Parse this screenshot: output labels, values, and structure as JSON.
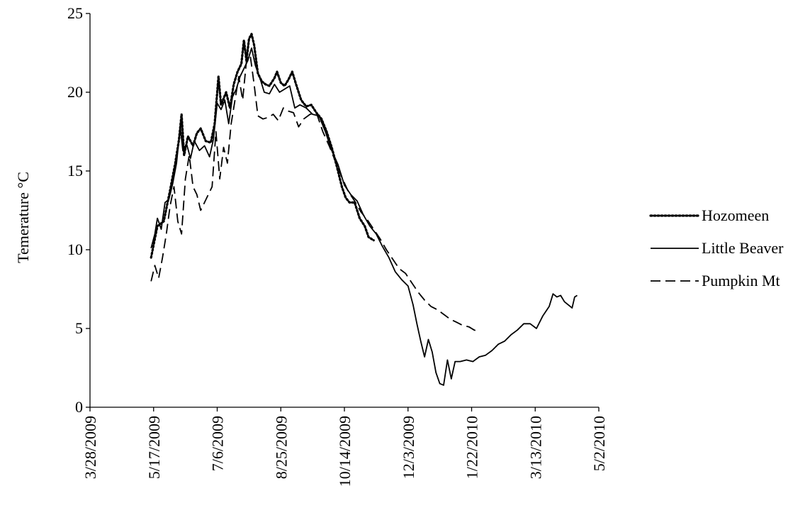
{
  "chart_data": {
    "type": "line",
    "title": "",
    "xlabel": "",
    "ylabel": "Temerature °C",
    "xlim": [
      "2009-03-28",
      "2010-05-02"
    ],
    "ylim": [
      0,
      25
    ],
    "x_ticks": [
      "3/28/2009",
      "5/17/2009",
      "7/6/2009",
      "8/25/2009",
      "10/14/2009",
      "12/3/2009",
      "1/22/2010",
      "3/13/2010",
      "5/2/2010"
    ],
    "y_ticks": [
      "0",
      "5",
      "10",
      "15",
      "20",
      "25"
    ],
    "grid": false,
    "legend_position": "right",
    "series": [
      {
        "name": "Hozomeen",
        "style": "dotted",
        "color": "#000000",
        "points": [
          [
            "2009-05-15",
            9.5
          ],
          [
            "2009-05-20",
            11.5
          ],
          [
            "2009-05-25",
            11.8
          ],
          [
            "2009-05-30",
            13.8
          ],
          [
            "2009-06-03",
            15.5
          ],
          [
            "2009-06-06",
            17.0
          ],
          [
            "2009-06-08",
            18.6
          ],
          [
            "2009-06-10",
            16.0
          ],
          [
            "2009-06-13",
            17.2
          ],
          [
            "2009-06-17",
            16.6
          ],
          [
            "2009-06-20",
            17.4
          ],
          [
            "2009-06-23",
            17.7
          ],
          [
            "2009-06-27",
            16.9
          ],
          [
            "2009-07-01",
            16.8
          ],
          [
            "2009-07-04",
            18.0
          ],
          [
            "2009-07-06",
            20.0
          ],
          [
            "2009-07-07",
            21.0
          ],
          [
            "2009-07-09",
            19.2
          ],
          [
            "2009-07-13",
            20.0
          ],
          [
            "2009-07-16",
            19.0
          ],
          [
            "2009-07-19",
            20.5
          ],
          [
            "2009-07-22",
            21.3
          ],
          [
            "2009-07-25",
            21.8
          ],
          [
            "2009-07-27",
            23.3
          ],
          [
            "2009-07-29",
            22.0
          ],
          [
            "2009-07-31",
            23.4
          ],
          [
            "2009-08-02",
            23.7
          ],
          [
            "2009-08-04",
            23.0
          ],
          [
            "2009-08-07",
            21.2
          ],
          [
            "2009-08-10",
            20.7
          ],
          [
            "2009-08-13",
            20.5
          ],
          [
            "2009-08-16",
            20.4
          ],
          [
            "2009-08-20",
            20.9
          ],
          [
            "2009-08-22",
            21.3
          ],
          [
            "2009-08-25",
            20.6
          ],
          [
            "2009-08-28",
            20.4
          ],
          [
            "2009-08-31",
            20.8
          ],
          [
            "2009-09-03",
            21.3
          ],
          [
            "2009-09-06",
            20.5
          ],
          [
            "2009-09-10",
            19.5
          ],
          [
            "2009-09-14",
            19.1
          ],
          [
            "2009-09-18",
            19.2
          ],
          [
            "2009-09-22",
            18.7
          ],
          [
            "2009-09-26",
            18.3
          ],
          [
            "2009-09-30",
            17.5
          ],
          [
            "2009-10-04",
            16.5
          ],
          [
            "2009-10-08",
            15.3
          ],
          [
            "2009-10-12",
            14.0
          ],
          [
            "2009-10-15",
            13.3
          ],
          [
            "2009-10-18",
            13.0
          ],
          [
            "2009-10-22",
            13.0
          ],
          [
            "2009-10-26",
            12.0
          ],
          [
            "2009-10-30",
            11.5
          ],
          [
            "2009-11-02",
            10.8
          ],
          [
            "2009-11-06",
            10.6
          ]
        ]
      },
      {
        "name": "Little Beaver",
        "style": "solid",
        "color": "#000000",
        "points": [
          [
            "2009-05-15",
            10.1
          ],
          [
            "2009-05-18",
            11.0
          ],
          [
            "2009-05-20",
            12.0
          ],
          [
            "2009-05-23",
            11.3
          ],
          [
            "2009-05-26",
            13.0
          ],
          [
            "2009-05-29",
            13.2
          ],
          [
            "2009-06-01",
            14.2
          ],
          [
            "2009-06-04",
            15.5
          ],
          [
            "2009-06-07",
            17.8
          ],
          [
            "2009-06-09",
            16.3
          ],
          [
            "2009-06-12",
            16.7
          ],
          [
            "2009-06-15",
            15.8
          ],
          [
            "2009-06-18",
            16.9
          ],
          [
            "2009-06-22",
            16.3
          ],
          [
            "2009-06-26",
            16.6
          ],
          [
            "2009-06-30",
            15.9
          ],
          [
            "2009-07-03",
            17.0
          ],
          [
            "2009-07-06",
            19.3
          ],
          [
            "2009-07-09",
            18.9
          ],
          [
            "2009-07-12",
            19.5
          ],
          [
            "2009-07-15",
            18.0
          ],
          [
            "2009-07-18",
            19.7
          ],
          [
            "2009-07-21",
            20.2
          ],
          [
            "2009-07-24",
            21.0
          ],
          [
            "2009-07-27",
            21.5
          ],
          [
            "2009-07-30",
            22.0
          ],
          [
            "2009-08-02",
            22.8
          ],
          [
            "2009-08-05",
            21.7
          ],
          [
            "2009-08-09",
            20.8
          ],
          [
            "2009-08-12",
            20.0
          ],
          [
            "2009-08-16",
            19.9
          ],
          [
            "2009-08-20",
            20.5
          ],
          [
            "2009-08-24",
            20.0
          ],
          [
            "2009-08-28",
            20.2
          ],
          [
            "2009-09-01",
            20.4
          ],
          [
            "2009-09-05",
            19.0
          ],
          [
            "2009-09-09",
            19.2
          ],
          [
            "2009-09-14",
            19.0
          ],
          [
            "2009-09-19",
            18.6
          ],
          [
            "2009-09-24",
            18.5
          ],
          [
            "2009-09-29",
            17.5
          ],
          [
            "2009-10-04",
            16.3
          ],
          [
            "2009-10-09",
            15.4
          ],
          [
            "2009-10-14",
            14.1
          ],
          [
            "2009-10-19",
            13.5
          ],
          [
            "2009-10-24",
            13.1
          ],
          [
            "2009-10-29",
            12.2
          ],
          [
            "2009-11-03",
            11.5
          ],
          [
            "2009-11-08",
            11.0
          ],
          [
            "2009-11-13",
            10.2
          ],
          [
            "2009-11-18",
            9.5
          ],
          [
            "2009-11-23",
            8.6
          ],
          [
            "2009-11-28",
            8.1
          ],
          [
            "2009-12-03",
            7.7
          ],
          [
            "2009-12-07",
            6.5
          ],
          [
            "2009-12-10",
            5.3
          ],
          [
            "2009-12-13",
            4.2
          ],
          [
            "2009-12-16",
            3.2
          ],
          [
            "2009-12-19",
            4.3
          ],
          [
            "2009-12-22",
            3.5
          ],
          [
            "2009-12-25",
            2.2
          ],
          [
            "2009-12-28",
            1.5
          ],
          [
            "2009-12-31",
            1.4
          ],
          [
            "2010-01-03",
            3.0
          ],
          [
            "2010-01-06",
            1.8
          ],
          [
            "2010-01-09",
            2.9
          ],
          [
            "2010-01-13",
            2.9
          ],
          [
            "2010-01-18",
            3.0
          ],
          [
            "2010-01-23",
            2.9
          ],
          [
            "2010-01-28",
            3.2
          ],
          [
            "2010-02-02",
            3.3
          ],
          [
            "2010-02-07",
            3.6
          ],
          [
            "2010-02-12",
            4.0
          ],
          [
            "2010-02-17",
            4.2
          ],
          [
            "2010-02-22",
            4.6
          ],
          [
            "2010-02-27",
            4.9
          ],
          [
            "2010-03-04",
            5.3
          ],
          [
            "2010-03-09",
            5.3
          ],
          [
            "2010-03-14",
            5.0
          ],
          [
            "2010-03-19",
            5.8
          ],
          [
            "2010-03-24",
            6.4
          ],
          [
            "2010-03-27",
            7.2
          ],
          [
            "2010-03-30",
            7.0
          ],
          [
            "2010-04-02",
            7.1
          ],
          [
            "2010-04-05",
            6.7
          ],
          [
            "2010-04-08",
            6.5
          ],
          [
            "2010-04-11",
            6.3
          ],
          [
            "2010-04-13",
            7.0
          ],
          [
            "2010-04-15",
            7.1
          ]
        ]
      },
      {
        "name": "Pumpkin Mt",
        "style": "dashed",
        "color": "#000000",
        "points": [
          [
            "2009-05-15",
            8.0
          ],
          [
            "2009-05-18",
            9.0
          ],
          [
            "2009-05-21",
            8.2
          ],
          [
            "2009-05-24",
            9.5
          ],
          [
            "2009-05-27",
            11.0
          ],
          [
            "2009-05-30",
            12.8
          ],
          [
            "2009-06-02",
            14.0
          ],
          [
            "2009-06-05",
            11.8
          ],
          [
            "2009-06-08",
            11.0
          ],
          [
            "2009-06-11",
            14.5
          ],
          [
            "2009-06-14",
            16.0
          ],
          [
            "2009-06-17",
            14.0
          ],
          [
            "2009-06-20",
            13.5
          ],
          [
            "2009-06-23",
            12.5
          ],
          [
            "2009-06-26",
            13.0
          ],
          [
            "2009-06-29",
            13.5
          ],
          [
            "2009-07-02",
            14.0
          ],
          [
            "2009-07-05",
            17.5
          ],
          [
            "2009-07-08",
            14.5
          ],
          [
            "2009-07-11",
            16.5
          ],
          [
            "2009-07-14",
            15.5
          ],
          [
            "2009-07-17",
            18.0
          ],
          [
            "2009-07-20",
            19.5
          ],
          [
            "2009-07-23",
            21.0
          ],
          [
            "2009-07-26",
            19.5
          ],
          [
            "2009-07-29",
            22.0
          ],
          [
            "2009-08-01",
            22.3
          ],
          [
            "2009-08-04",
            20.5
          ],
          [
            "2009-08-07",
            18.5
          ],
          [
            "2009-08-11",
            18.3
          ],
          [
            "2009-08-15",
            18.4
          ],
          [
            "2009-08-19",
            18.6
          ],
          [
            "2009-08-23",
            18.2
          ],
          [
            "2009-08-27",
            19.0
          ],
          [
            "2009-08-31",
            18.8
          ],
          [
            "2009-09-04",
            18.7
          ],
          [
            "2009-09-08",
            17.8
          ],
          [
            "2009-09-12",
            18.3
          ],
          [
            "2009-09-17",
            18.6
          ],
          [
            "2009-09-22",
            18.7
          ],
          [
            "2009-09-27",
            17.5
          ],
          [
            "2009-10-02",
            16.6
          ],
          [
            "2009-10-07",
            15.6
          ],
          [
            "2009-10-12",
            14.6
          ],
          [
            "2009-10-17",
            13.7
          ],
          [
            "2009-10-22",
            13.1
          ],
          [
            "2009-10-27",
            12.4
          ],
          [
            "2009-11-01",
            11.9
          ],
          [
            "2009-11-06",
            11.3
          ],
          [
            "2009-11-11",
            10.7
          ],
          [
            "2009-11-16",
            10.0
          ],
          [
            "2009-11-21",
            9.4
          ],
          [
            "2009-11-26",
            8.8
          ],
          [
            "2009-12-01",
            8.5
          ],
          [
            "2009-12-06",
            7.9
          ],
          [
            "2009-12-11",
            7.3
          ],
          [
            "2009-12-16",
            6.8
          ],
          [
            "2009-12-21",
            6.4
          ],
          [
            "2009-12-26",
            6.2
          ],
          [
            "2009-12-31",
            5.9
          ],
          [
            "2010-01-05",
            5.6
          ],
          [
            "2010-01-10",
            5.4
          ],
          [
            "2010-01-15",
            5.2
          ],
          [
            "2010-01-20",
            5.1
          ],
          [
            "2010-01-24",
            4.9
          ],
          [
            "2010-01-28",
            4.8
          ]
        ]
      }
    ]
  }
}
